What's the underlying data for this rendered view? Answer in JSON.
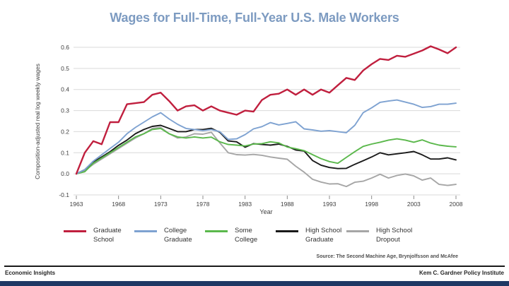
{
  "page": {
    "title": "Wages for Full-Time, Full-Year U.S. Male Workers",
    "source_note": "Source: The Second Machine Age, Brynjolfsson and McAfee",
    "footer_left": "Economic Insights",
    "footer_right": "Kem C. Gardner Policy Institute"
  },
  "colors": {
    "title_text": "#7d9bc1",
    "grid": "#d9d9d9",
    "axis_text": "#404040",
    "tick_mark": "#8c8c8c",
    "footer_bar": "#1f3864"
  },
  "chart_data": {
    "type": "line",
    "title": "Wages for Full-Time, Full-Year U.S. Male Workers",
    "xlabel": "Year",
    "ylabel": "Composition-adjusted real log weekly wages",
    "xlim": [
      1963,
      2008
    ],
    "ylim": [
      -0.1,
      0.6
    ],
    "x_ticks": [
      1963,
      1968,
      1973,
      1978,
      1983,
      1988,
      1993,
      1998,
      2003,
      2008
    ],
    "y_ticks": [
      0.6,
      0.5,
      0.4,
      0.3,
      0.2,
      0.1,
      0.0,
      -0.1
    ],
    "grid": true,
    "legend_position": "bottom",
    "x": [
      1963,
      1964,
      1965,
      1966,
      1967,
      1968,
      1969,
      1970,
      1971,
      1972,
      1973,
      1974,
      1975,
      1976,
      1977,
      1978,
      1979,
      1980,
      1981,
      1982,
      1983,
      1984,
      1985,
      1986,
      1987,
      1988,
      1989,
      1990,
      1991,
      1992,
      1993,
      1994,
      1995,
      1996,
      1997,
      1998,
      1999,
      2000,
      2001,
      2002,
      2003,
      2004,
      2005,
      2006,
      2007,
      2008
    ],
    "series": [
      {
        "name": "Graduate School",
        "legend_lines": [
          "Graduate",
          "School"
        ],
        "color": "#c01f3e",
        "width": 2.4,
        "values": [
          0.0,
          0.1,
          0.155,
          0.14,
          0.245,
          0.245,
          0.33,
          0.335,
          0.34,
          0.375,
          0.385,
          0.345,
          0.3,
          0.32,
          0.325,
          0.3,
          0.32,
          0.3,
          0.29,
          0.28,
          0.3,
          0.295,
          0.35,
          0.375,
          0.38,
          0.4,
          0.375,
          0.4,
          0.375,
          0.4,
          0.385,
          0.42,
          0.455,
          0.445,
          0.49,
          0.52,
          0.545,
          0.54,
          0.56,
          0.555,
          0.57,
          0.585,
          0.605,
          0.59,
          0.572,
          0.6
        ]
      },
      {
        "name": "College Graduate",
        "legend_lines": [
          "College",
          "Graduate"
        ],
        "color": "#7ea2d1",
        "width": 1.9,
        "values": [
          0.0,
          0.02,
          0.06,
          0.09,
          0.12,
          0.15,
          0.19,
          0.22,
          0.245,
          0.27,
          0.29,
          0.26,
          0.235,
          0.215,
          0.21,
          0.205,
          0.21,
          0.2,
          0.163,
          0.166,
          0.186,
          0.213,
          0.224,
          0.243,
          0.232,
          0.239,
          0.247,
          0.213,
          0.208,
          0.202,
          0.205,
          0.2,
          0.195,
          0.23,
          0.29,
          0.313,
          0.339,
          0.345,
          0.35,
          0.34,
          0.33,
          0.315,
          0.319,
          0.33,
          0.33,
          0.335
        ]
      },
      {
        "name": "Some College",
        "legend_lines": [
          "Some",
          "College"
        ],
        "color": "#5bb84c",
        "width": 1.9,
        "values": [
          0.0,
          0.01,
          0.05,
          0.075,
          0.1,
          0.125,
          0.15,
          0.175,
          0.19,
          0.21,
          0.215,
          0.19,
          0.175,
          0.17,
          0.175,
          0.17,
          0.174,
          0.152,
          0.139,
          0.136,
          0.132,
          0.141,
          0.143,
          0.152,
          0.147,
          0.127,
          0.119,
          0.11,
          0.091,
          0.072,
          0.058,
          0.05,
          0.078,
          0.105,
          0.13,
          0.141,
          0.15,
          0.16,
          0.166,
          0.16,
          0.15,
          0.161,
          0.146,
          0.136,
          0.131,
          0.128
        ]
      },
      {
        "name": "High School Graduate",
        "legend_lines": [
          "High School",
          "Graduate"
        ],
        "color": "#1a1a1a",
        "width": 1.9,
        "values": [
          0.0,
          0.02,
          0.055,
          0.08,
          0.105,
          0.135,
          0.16,
          0.19,
          0.21,
          0.225,
          0.23,
          0.215,
          0.2,
          0.2,
          0.21,
          0.21,
          0.216,
          0.197,
          0.156,
          0.152,
          0.126,
          0.143,
          0.139,
          0.136,
          0.141,
          0.13,
          0.113,
          0.108,
          0.063,
          0.041,
          0.03,
          0.025,
          0.026,
          0.045,
          0.062,
          0.08,
          0.1,
          0.09,
          0.095,
          0.1,
          0.106,
          0.09,
          0.07,
          0.07,
          0.076,
          0.066
        ]
      },
      {
        "name": "High School Dropout",
        "legend_lines": [
          "High School",
          "Dropout"
        ],
        "color": "#a6a6a6",
        "width": 1.9,
        "values": [
          0.0,
          0.015,
          0.045,
          0.07,
          0.095,
          0.12,
          0.145,
          0.17,
          0.19,
          0.215,
          0.22,
          0.19,
          0.17,
          0.175,
          0.19,
          0.188,
          0.197,
          0.147,
          0.1,
          0.091,
          0.089,
          0.092,
          0.088,
          0.08,
          0.074,
          0.069,
          0.036,
          0.008,
          -0.026,
          -0.039,
          -0.048,
          -0.047,
          -0.06,
          -0.04,
          -0.035,
          -0.02,
          -0.002,
          -0.02,
          -0.008,
          -0.001,
          -0.01,
          -0.03,
          -0.02,
          -0.05,
          -0.055,
          -0.05
        ]
      }
    ]
  }
}
